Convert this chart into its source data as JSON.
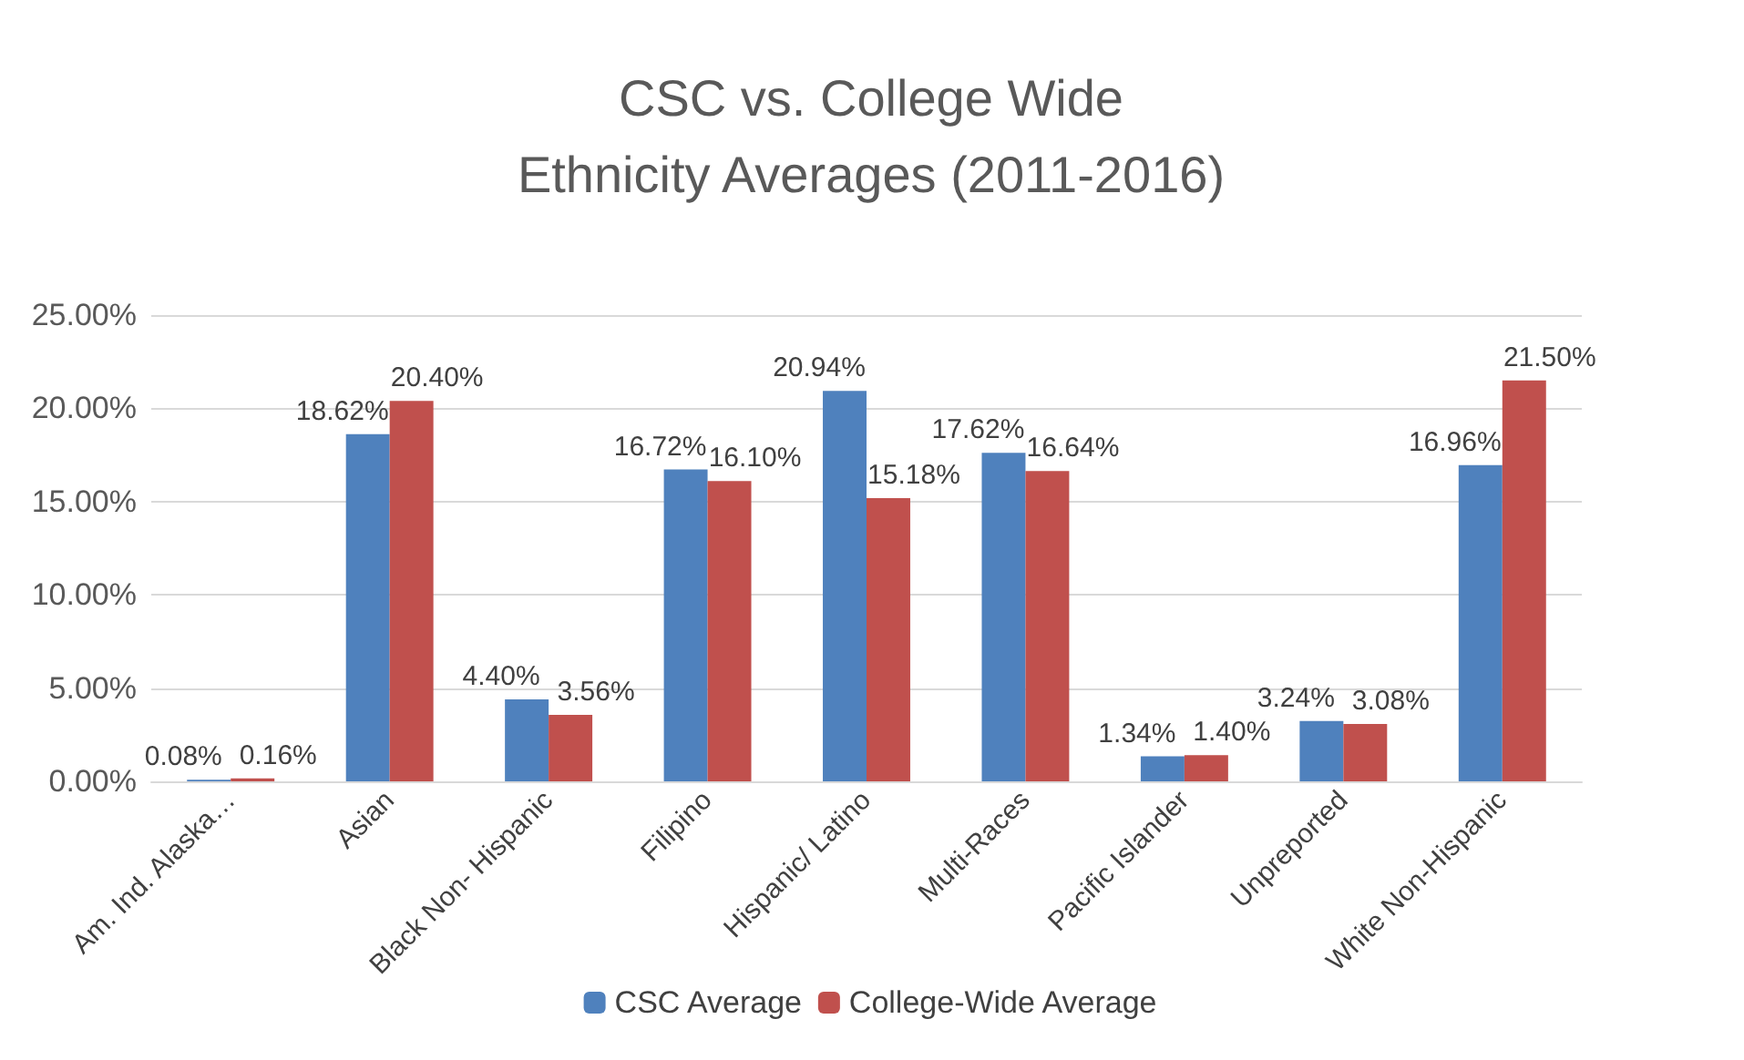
{
  "chart_data": {
    "type": "bar",
    "title": "CSC vs. College Wide\nEthnicity Averages (2011-2016)",
    "categories": [
      "Am. Ind. Alaska…",
      "Asian",
      "Black Non- Hispanic",
      "Filipino",
      "Hispanic/ Latino",
      "Multi-Races",
      "Pacific Islander",
      "Unpreported",
      "White Non-Hispanic"
    ],
    "series": [
      {
        "name": "CSC Average",
        "color": "#4f81bd",
        "values": [
          0.08,
          18.62,
          4.4,
          16.72,
          20.94,
          17.62,
          1.34,
          3.24,
          16.96
        ],
        "value_labels": [
          "0.08%",
          "18.62%",
          "4.40%",
          "16.72%",
          "20.94%",
          "17.62%",
          "1.34%",
          "3.24%",
          "16.96%"
        ]
      },
      {
        "name": "College-Wide Average",
        "color": "#c0504d",
        "values": [
          0.16,
          20.4,
          3.56,
          16.1,
          15.18,
          16.64,
          1.4,
          3.08,
          21.5
        ],
        "value_labels": [
          "0.16%",
          "20.40%",
          "3.56%",
          "16.10%",
          "15.18%",
          "16.64%",
          "1.40%",
          "3.08%",
          "21.50%"
        ]
      }
    ],
    "ylim": [
      0,
      25
    ],
    "yticks": [
      {
        "value": 0,
        "label": "0.00%"
      },
      {
        "value": 5,
        "label": "5.00%"
      },
      {
        "value": 10,
        "label": "10.00%"
      },
      {
        "value": 15,
        "label": "15.00%"
      },
      {
        "value": 20,
        "label": "20.00%"
      },
      {
        "value": 25,
        "label": "25.00%"
      }
    ],
    "grid": "y",
    "legend": "bottom"
  }
}
